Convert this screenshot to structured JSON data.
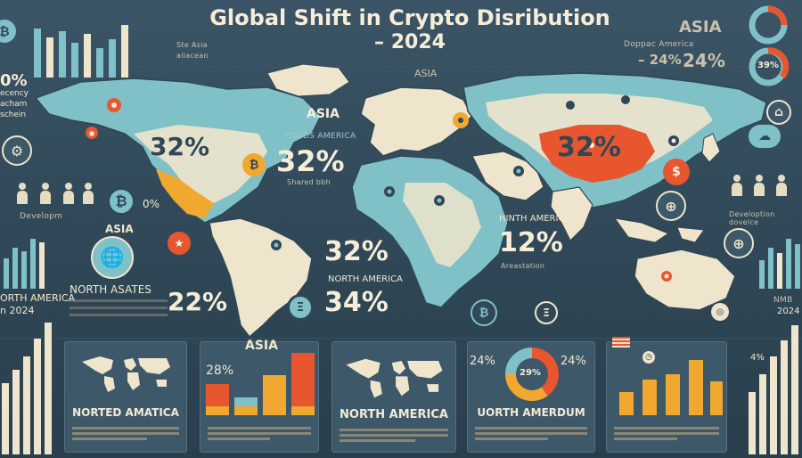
{
  "title": {
    "line1": "Global Shift in Crypto Disribution",
    "line2": "– 2024"
  },
  "left_panel": {
    "percent_top": "0%",
    "desc_lines": [
      "ecency",
      "acham",
      "schein"
    ],
    "dev_label": "Developm",
    "pct_small": "0%",
    "asia_label": "ASIA",
    "north_label": "ORTH AMERICA",
    "year_label": "n 2024"
  },
  "top_left": {
    "label1": "Ste Asia",
    "label2": "aliacean"
  },
  "top_right": {
    "asia_label": "ASIA",
    "region_label": "Doppac America",
    "pct1": "– 24%",
    "pct2": "24%",
    "donut_pct": "39%",
    "dev_label": "Develoption dovelce",
    "bottom_label": "NMB",
    "bottom_year": "2024"
  },
  "map": {
    "asia_header": "ASIA",
    "asia_label": "ASIA",
    "na_pct": "32%",
    "center_pct": "32%",
    "center_sub": "COEDS AMERICA",
    "center_tiny": "Shared bbh",
    "china_pct": "32%",
    "hinth_label": "HINTH AMERICA",
    "hinth_pct": "12%",
    "hinth_tiny": "Areastation",
    "mid_pct": "32%",
    "mid_label": "NORTH AMERICA",
    "mid_pct2": "34%",
    "left_label": "NORTH ASATES",
    "left_pct": "22%"
  },
  "cards": [
    {
      "caption": "NORTED AMATICA"
    },
    {
      "caption": "ASIA",
      "pct": "28%"
    },
    {
      "caption": "NORTH AMERICA"
    },
    {
      "caption": "UORTH AMERDUM",
      "pct_left": "24%",
      "pct_center": "29%",
      "pct_right": "24%"
    },
    {
      "caption": ""
    }
  ],
  "right_bottom": {
    "pct": "4%"
  },
  "colors": {
    "background": "#324b5a",
    "land": "#efe5cc",
    "teal": "#7fc1c6",
    "orange": "#e8562f",
    "gold": "#f0a830",
    "cream": "#f6edd8"
  },
  "chart_data": [
    {
      "type": "bar",
      "categories": [
        "",
        "",
        "",
        ""
      ],
      "values": [
        35,
        20,
        45,
        70
      ],
      "colors": [
        "#e8562f",
        "#7fc1c6",
        "#f0a830",
        "#e8562f"
      ]
    },
    {
      "type": "pie",
      "categories": [
        "",
        "",
        ""
      ],
      "values": [
        40,
        35,
        25
      ],
      "colors": [
        "#e8562f",
        "#f0a830",
        "#7fc1c6"
      ]
    }
  ]
}
